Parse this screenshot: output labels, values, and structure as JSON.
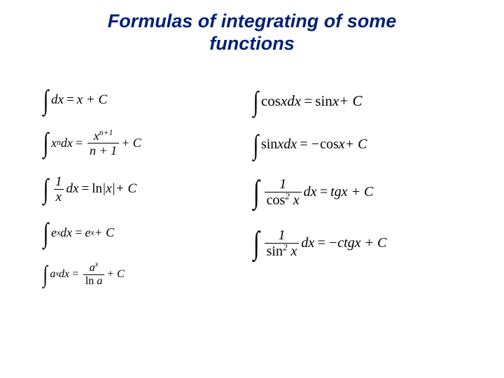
{
  "title": {
    "line1": "Formulas of integrating of some",
    "line2": "functions",
    "color": "#002176",
    "fontsize": 27
  },
  "left_column": {
    "f1": {
      "integrand": "dx",
      "rhs": "x + C",
      "fontsize": 19
    },
    "f2": {
      "integrand_base": "x",
      "integrand_exp": "n",
      "integrand_dx": "dx",
      "frac_num_base": "x",
      "frac_num_exp": "n+1",
      "frac_den": "n + 1",
      "tail": " + C",
      "fontsize": 18
    },
    "f3": {
      "frac_num": "1",
      "frac_den": "x",
      "integrand_dx": "dx",
      "rhs_fn": "ln",
      "rhs_arg": "|x|",
      "tail": " + C",
      "fontsize": 19
    },
    "f4": {
      "integrand_base": "e",
      "integrand_exp": "x",
      "integrand_dx": "dx",
      "rhs_base": "e",
      "rhs_exp": "x",
      "tail": " + C",
      "fontsize": 18
    },
    "f5": {
      "integrand_base": "a",
      "integrand_exp": "x",
      "integrand_dx": "dx",
      "frac_num_base": "a",
      "frac_num_exp": "x",
      "frac_den_fn": "ln",
      "frac_den_arg": " a",
      "tail": " + C",
      "fontsize": 16
    }
  },
  "right_column": {
    "f1": {
      "lhs_fn": "cos ",
      "lhs_arg": "xdx",
      "rhs_fn": "sin ",
      "rhs_arg": "x",
      "tail": " + C",
      "fontsize": 21
    },
    "f2": {
      "lhs_fn": "sin ",
      "lhs_arg": "xdx",
      "pre": "−",
      "rhs_fn": "cos ",
      "rhs_arg": "x",
      "tail": " + C",
      "fontsize": 20
    },
    "f3": {
      "frac_num": "1",
      "frac_den_fn": "cos",
      "frac_den_exp": "2",
      "frac_den_arg": " x",
      "integrand_dx": "dx",
      "rhs": "tgx + C",
      "fontsize": 20
    },
    "f4": {
      "frac_num": "1",
      "frac_den_fn": "sin",
      "frac_den_exp": "2",
      "frac_den_arg": " x",
      "integrand_dx": "dx",
      "pre": "−",
      "rhs": "ctgx + C",
      "fontsize": 20
    }
  },
  "colors": {
    "background": "#ffffff",
    "title": "#002176",
    "formula": "#000000"
  }
}
